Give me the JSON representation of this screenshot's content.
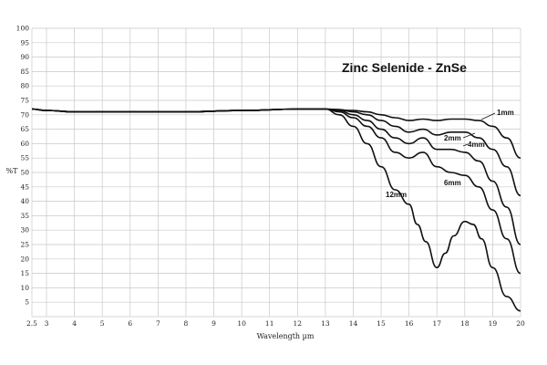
{
  "chart_data": {
    "type": "line",
    "title": "Zinc Selenide - ZnSe",
    "xlabel": "Wavelength µm",
    "ylabel": "%T",
    "xlim": [
      2.5,
      20
    ],
    "ylim": [
      0,
      100
    ],
    "grid": true,
    "x_ticks": [
      "2.5",
      "3",
      "4",
      "5",
      "6",
      "7",
      "8",
      "9",
      "10",
      "11",
      "12",
      "13",
      "14",
      "15",
      "16",
      "17",
      "18",
      "19",
      "20"
    ],
    "y_ticks": [
      "5",
      "10",
      "15",
      "20",
      "25",
      "30",
      "35",
      "40",
      "45",
      "50",
      "55",
      "60",
      "65",
      "70",
      "75",
      "80",
      "85",
      "90",
      "95",
      "100"
    ],
    "series": [
      {
        "name": "1mm",
        "x": [
          2.5,
          3,
          4,
          6,
          8,
          10,
          12,
          13,
          14,
          14.5,
          15,
          15.5,
          16,
          16.5,
          17,
          17.5,
          18,
          18.5,
          19,
          19.5,
          20
        ],
        "values": [
          72,
          71.5,
          71,
          71,
          71,
          71.5,
          72,
          72,
          71.5,
          71,
          70,
          69,
          68,
          68.5,
          68,
          68.5,
          68.5,
          68,
          66,
          62,
          55
        ]
      },
      {
        "name": "2mm",
        "x": [
          2.5,
          3,
          4,
          6,
          8,
          10,
          12,
          13,
          13.5,
          14,
          14.5,
          15,
          15.5,
          16,
          16.5,
          17,
          17.5,
          18,
          18.5,
          19,
          19.5,
          20
        ],
        "values": [
          72,
          71.5,
          71,
          71,
          71,
          71.5,
          72,
          72,
          71.8,
          71,
          70,
          68,
          66,
          64,
          65,
          63,
          64,
          64,
          62,
          58,
          52,
          42
        ]
      },
      {
        "name": "4mm",
        "x": [
          2.5,
          3,
          4,
          6,
          8,
          10,
          12,
          13,
          13.5,
          14,
          14.5,
          15,
          15.5,
          16,
          16.5,
          17,
          17.5,
          18,
          18.5,
          19,
          19.5,
          20
        ],
        "values": [
          72,
          71.5,
          71,
          71,
          71,
          71.5,
          72,
          72,
          71.5,
          70,
          68,
          65,
          62,
          60,
          62,
          58,
          58,
          57,
          54,
          47,
          38,
          25
        ]
      },
      {
        "name": "6mm",
        "x": [
          2.5,
          3,
          4,
          6,
          8,
          10,
          12,
          13,
          13.5,
          14,
          14.5,
          15,
          15.5,
          16,
          16.5,
          17,
          17.5,
          18,
          18.5,
          19,
          19.5,
          20
        ],
        "values": [
          72,
          71.5,
          71,
          71,
          71,
          71.5,
          72,
          72,
          71,
          69,
          66,
          62,
          57,
          55,
          57,
          52,
          50,
          49,
          45,
          37,
          27,
          15
        ]
      },
      {
        "name": "12mm",
        "x": [
          2.5,
          3,
          4,
          6,
          8,
          10,
          12,
          13,
          13.5,
          14,
          14.5,
          15,
          15.5,
          16,
          16.3,
          16.6,
          17,
          17.3,
          17.6,
          18,
          18.3,
          18.6,
          19,
          19.5,
          20
        ],
        "values": [
          72,
          71.5,
          71,
          71,
          71,
          71.5,
          72,
          72,
          70,
          66,
          60,
          52,
          44,
          39,
          32,
          26,
          17,
          22,
          28,
          33,
          32,
          27,
          17,
          7,
          2
        ]
      }
    ]
  }
}
